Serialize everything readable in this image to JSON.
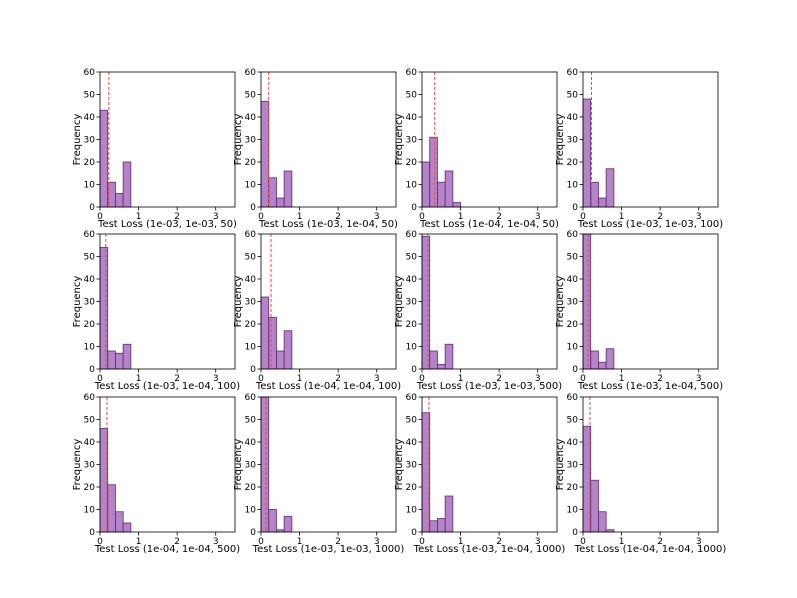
{
  "chart_data": [
    {
      "type": "bar",
      "title": "",
      "xlabel": "Test Loss (1e-03, 1e-03, 50)",
      "ylabel": "Frequency",
      "xlim": [
        0,
        3.5
      ],
      "ylim": [
        0,
        60
      ],
      "xticks": [
        "0",
        "1",
        "2",
        "3"
      ],
      "yticks": [
        "0",
        "10",
        "20",
        "30",
        "40",
        "50",
        "60"
      ],
      "bin_width": 0.2,
      "values": [
        43,
        11,
        6,
        20
      ],
      "mean_line": 0.23
    },
    {
      "type": "bar",
      "title": "",
      "xlabel": "Test Loss (1e-03, 1e-04, 50)",
      "ylabel": "Frequency",
      "xlim": [
        0,
        3.5
      ],
      "ylim": [
        0,
        60
      ],
      "xticks": [
        "0",
        "1",
        "2",
        "3"
      ],
      "yticks": [
        "0",
        "10",
        "20",
        "30",
        "40",
        "50",
        "60"
      ],
      "bin_width": 0.2,
      "values": [
        47,
        13,
        4,
        16
      ],
      "mean_line": 0.2
    },
    {
      "type": "bar",
      "title": "",
      "xlabel": "Test Loss (1e-04, 1e-04, 50)",
      "ylabel": "Frequency",
      "xlim": [
        0,
        3.5
      ],
      "ylim": [
        0,
        60
      ],
      "xticks": [
        "0",
        "1",
        "2",
        "3"
      ],
      "yticks": [
        "0",
        "10",
        "20",
        "30",
        "40",
        "50",
        "60"
      ],
      "bin_width": 0.2,
      "values": [
        20,
        31,
        11,
        16,
        2
      ],
      "mean_line": 0.33
    },
    {
      "type": "bar",
      "title": "",
      "xlabel": "Test Loss (1e-03, 1e-03, 100)",
      "ylabel": "Frequency",
      "xlim": [
        0,
        3.5
      ],
      "ylim": [
        0,
        60
      ],
      "xticks": [
        "0",
        "1",
        "2",
        "3"
      ],
      "yticks": [
        "0",
        "10",
        "20",
        "30",
        "40",
        "50",
        "60"
      ],
      "bin_width": 0.2,
      "values": [
        48,
        11,
        4,
        17
      ],
      "mean_line": 0.22
    },
    {
      "type": "bar",
      "title": "",
      "xlabel": "Test Loss (1e-03, 1e-04, 100)",
      "ylabel": "Frequency",
      "xlim": [
        0,
        3.5
      ],
      "ylim": [
        0,
        60
      ],
      "xticks": [
        "0",
        "1",
        "2",
        "3"
      ],
      "yticks": [
        "0",
        "10",
        "20",
        "30",
        "40",
        "50",
        "60"
      ],
      "bin_width": 0.2,
      "values": [
        54,
        8,
        7,
        11
      ],
      "mean_line": 0.15
    },
    {
      "type": "bar",
      "title": "",
      "xlabel": "Test Loss (1e-04, 1e-04, 100)",
      "ylabel": "Frequency",
      "xlim": [
        0,
        3.5
      ],
      "ylim": [
        0,
        60
      ],
      "xticks": [
        "0",
        "1",
        "2",
        "3"
      ],
      "yticks": [
        "0",
        "10",
        "20",
        "30",
        "40",
        "50",
        "60"
      ],
      "bin_width": 0.2,
      "values": [
        32,
        23,
        8,
        17
      ],
      "mean_line": 0.26
    },
    {
      "type": "bar",
      "title": "",
      "xlabel": "Test Loss (1e-03, 1e-03, 500)",
      "ylabel": "Frequency",
      "xlim": [
        0,
        3.5
      ],
      "ylim": [
        0,
        60
      ],
      "xticks": [
        "0",
        "1",
        "2",
        "3"
      ],
      "yticks": [
        "0",
        "10",
        "20",
        "30",
        "40",
        "50",
        "60"
      ],
      "bin_width": 0.2,
      "values": [
        59,
        8,
        2,
        11
      ],
      "mean_line": 0.15
    },
    {
      "type": "bar",
      "title": "",
      "xlabel": "Test Loss (1e-03, 1e-04, 500)",
      "ylabel": "Frequency",
      "xlim": [
        0,
        3.5
      ],
      "ylim": [
        0,
        60
      ],
      "xticks": [
        "0",
        "1",
        "2",
        "3"
      ],
      "yticks": [
        "0",
        "10",
        "20",
        "30",
        "40",
        "50",
        "60"
      ],
      "bin_width": 0.2,
      "values": [
        60,
        8,
        3,
        9
      ],
      "mean_line": 0.13
    },
    {
      "type": "bar",
      "title": "",
      "xlabel": "Test Loss (1e-04, 1e-04, 500)",
      "ylabel": "Frequency",
      "xlim": [
        0,
        3.5
      ],
      "ylim": [
        0,
        60
      ],
      "xticks": [
        "0",
        "1",
        "2",
        "3"
      ],
      "yticks": [
        "0",
        "10",
        "20",
        "30",
        "40",
        "50",
        "60"
      ],
      "bin_width": 0.2,
      "values": [
        46,
        21,
        9,
        4
      ],
      "mean_line": 0.18
    },
    {
      "type": "bar",
      "title": "",
      "xlabel": "Test Loss (1e-03, 1e-03, 1000)",
      "ylabel": "Frequency",
      "xlim": [
        0,
        3.5
      ],
      "ylim": [
        0,
        60
      ],
      "xticks": [
        "0",
        "1",
        "2",
        "3"
      ],
      "yticks": [
        "0",
        "10",
        "20",
        "30",
        "40",
        "50",
        "60"
      ],
      "bin_width": 0.2,
      "values": [
        60,
        10,
        1,
        7
      ],
      "mean_line": 0.13
    },
    {
      "type": "bar",
      "title": "",
      "xlabel": "Test Loss (1e-03, 1e-04, 1000)",
      "ylabel": "Frequency",
      "xlim": [
        0,
        3.5
      ],
      "ylim": [
        0,
        60
      ],
      "xticks": [
        "0",
        "1",
        "2",
        "3"
      ],
      "yticks": [
        "0",
        "10",
        "20",
        "30",
        "40",
        "50",
        "60"
      ],
      "bin_width": 0.2,
      "values": [
        53,
        5,
        6,
        16
      ],
      "mean_line": 0.18
    },
    {
      "type": "bar",
      "title": "",
      "xlabel": "Test Loss (1e-04, 1e-04, 1000)",
      "ylabel": "Frequency",
      "xlim": [
        0,
        3.5
      ],
      "ylim": [
        0,
        60
      ],
      "xticks": [
        "0",
        "1",
        "2",
        "3"
      ],
      "yticks": [
        "0",
        "10",
        "20",
        "30",
        "40",
        "50",
        "60"
      ],
      "bin_width": 0.2,
      "values": [
        47,
        23,
        9,
        1
      ],
      "mean_line": 0.18
    }
  ],
  "colors": {
    "bar_fill": "#9b59b6",
    "bar_edge": "#5b2c6f",
    "mean_line": "#e74c3c"
  }
}
